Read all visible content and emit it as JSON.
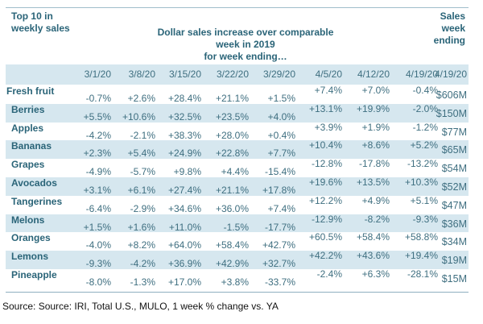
{
  "header": {
    "left_line1": "Top 10 in",
    "left_line2": "weekly sales",
    "title_line1": "Dollar sales increase over comparable week in 2019",
    "title_line2": "for week ending…",
    "right_line1": "Sales",
    "right_line2": "week",
    "right_line3": "ending"
  },
  "dates": [
    "3/1/20",
    "3/8/20",
    "3/15/20",
    "3/22/20",
    "3/29/20",
    "4/5/20",
    "4/12/20",
    "4/19/20"
  ],
  "sales_date": "4/19/20",
  "rows": [
    {
      "name": "Fresh fruit",
      "values": [
        "-0.7%",
        "+2.6%",
        "+28.4%",
        "+21.1%",
        "+1.5%",
        "+7.4%",
        "+7.0%",
        "-0.4%"
      ],
      "sales": "$606M"
    },
    {
      "name": "Berries",
      "values": [
        "+5.5%",
        "+10.6%",
        "+32.5%",
        "+23.5%",
        "+4.0%",
        "+13.1%",
        "+19.9%",
        "-2.0%"
      ],
      "sales": "$150M"
    },
    {
      "name": "Apples",
      "values": [
        "-4.2%",
        "-2.1%",
        "+38.3%",
        "+28.0%",
        "+0.4%",
        "+3.9%",
        "+1.9%",
        "-1.2%"
      ],
      "sales": "$77M"
    },
    {
      "name": "Bananas",
      "values": [
        "+2.3%",
        "+5.4%",
        "+24.9%",
        "+22.8%",
        "+7.7%",
        "+10.4%",
        "+8.6%",
        "+5.2%"
      ],
      "sales": "$65M"
    },
    {
      "name": "Grapes",
      "values": [
        "-4.9%",
        "-5.7%",
        "+9.8%",
        "+4.4%",
        "-15.4%",
        "-12.8%",
        "-17.8%",
        "-13.2%"
      ],
      "sales": "$54M"
    },
    {
      "name": "Avocados",
      "values": [
        "+3.1%",
        "+6.1%",
        "+27.4%",
        "+21.1%",
        "+17.8%",
        "+19.6%",
        "+13.5%",
        "+10.3%"
      ],
      "sales": "$52M"
    },
    {
      "name": "Tangerines",
      "values": [
        "-6.4%",
        "-2.9%",
        "+34.6%",
        "+36.0%",
        "+7.4%",
        "+12.2%",
        "+4.9%",
        "+5.1%"
      ],
      "sales": "$47M"
    },
    {
      "name": "Melons",
      "values": [
        "+1.5%",
        "+1.6%",
        "+11.0%",
        "-1.5%",
        "-17.7%",
        "-12.9%",
        "-8.2%",
        "-9.3%"
      ],
      "sales": "$36M"
    },
    {
      "name": "Oranges",
      "values": [
        "-4.0%",
        "+8.2%",
        "+64.0%",
        "+58.4%",
        "+42.7%",
        "+60.5%",
        "+58.4%",
        "+58.8%"
      ],
      "sales": "$34M"
    },
    {
      "name": "Lemons",
      "values": [
        "-9.3%",
        "-4.2%",
        "+36.9%",
        "+42.9%",
        "+32.7%",
        "+42.2%",
        "+43.6%",
        "+19.4%"
      ],
      "sales": "$19M"
    },
    {
      "name": "Pineapple",
      "values": [
        "-8.0%",
        "-1.3%",
        "+17.0%",
        "+3.8%",
        "-33.7%",
        "-2.4%",
        "+6.3%",
        "-28.1%"
      ],
      "sales": "$15M"
    }
  ],
  "source": "Source: Source: IRI, Total U.S., MULO, 1 week % change vs. YA",
  "colors": {
    "header_text": "#2a6478",
    "value_text": "#3f6f80",
    "band": "#d6e7ef"
  }
}
